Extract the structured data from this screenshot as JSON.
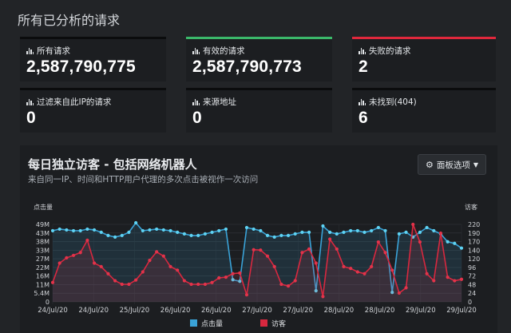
{
  "page": {
    "title": "所有已分析的请求"
  },
  "cards": [
    {
      "label": "所有请求",
      "value": "2,587,790,775",
      "bar_color": ""
    },
    {
      "label": "有效的请求",
      "value": "2,587,790,773",
      "bar_color": "#3bb86a"
    },
    {
      "label": "失败的请求",
      "value": "2",
      "bar_color": "#e0283c"
    },
    {
      "label": "过滤来自此IP的请求",
      "value": "0",
      "bar_color": ""
    },
    {
      "label": "来源地址",
      "value": "0",
      "bar_color": ""
    },
    {
      "label": "未找到(404)",
      "value": "6",
      "bar_color": ""
    }
  ],
  "panel": {
    "title": "每日独立访客 - 包括网络机器人",
    "subtitle": "来自同一IP、时间和HTTP用户代理的多次点击被视作一次访问",
    "options_label": "面板选项"
  },
  "chart_data": {
    "type": "line",
    "left_axis_label": "点击量",
    "right_axis_label": "访客",
    "left_ticks": [
      "0",
      "5.4M",
      "11M",
      "16M",
      "22M",
      "27M",
      "33M",
      "38M",
      "43M",
      "49M"
    ],
    "right_ticks": [
      "0",
      "24",
      "48",
      "72",
      "96",
      "120",
      "140",
      "170",
      "190",
      "220"
    ],
    "x_tick_labels": [
      "24/Jul/20",
      "24/Jul/20",
      "25/Jul/20",
      "26/Jul/20",
      "26/Jul/20",
      "27/Jul/20",
      "27/Jul/20",
      "28/Jul/20",
      "28/Jul/20",
      "29/Jul/20",
      "29/Jul/20"
    ],
    "y_left_lim": [
      0,
      49
    ],
    "y_right_lim": [
      0,
      220
    ],
    "series": [
      {
        "name": "点击量",
        "axis": "left",
        "color": "#3aa3d8",
        "marker_color": "#5ed3f3",
        "values": [
          45,
          46,
          45.5,
          45,
          45,
          46,
          45.5,
          44,
          42,
          41,
          42,
          44,
          50,
          45,
          45.5,
          46,
          45.5,
          45,
          44,
          43,
          42,
          42,
          43,
          44,
          45,
          46,
          14,
          13,
          47,
          46,
          45,
          42,
          41,
          42,
          42,
          43,
          44,
          44,
          7,
          48,
          44,
          43,
          44,
          45,
          45,
          44,
          45,
          47,
          45,
          6,
          43,
          44,
          41,
          44,
          47,
          45,
          43,
          38,
          37,
          34
        ]
      },
      {
        "name": "访客",
        "axis": "right",
        "color": "#d8283f",
        "marker_color": "#e3334a",
        "values": [
          55,
          110,
          125,
          132,
          140,
          175,
          110,
          100,
          80,
          60,
          50,
          50,
          62,
          85,
          118,
          142,
          130,
          100,
          90,
          60,
          50,
          50,
          50,
          55,
          68,
          70,
          80,
          82,
          20,
          148,
          147,
          130,
          100,
          50,
          45,
          60,
          140,
          150,
          110,
          15,
          178,
          150,
          100,
          95,
          85,
          80,
          100,
          170,
          140,
          90,
          25,
          40,
          220,
          170,
          80,
          60,
          195,
          70,
          60,
          64
        ]
      }
    ]
  }
}
